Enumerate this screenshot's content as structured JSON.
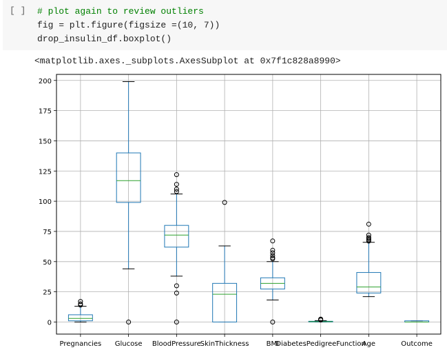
{
  "cell": {
    "run_label": "[ ]",
    "code_lines": [
      "# plot again to review outliers",
      "fig = plt.figure(figsize =(10, 7))",
      "drop_insulin_df.boxplot()"
    ],
    "output": "<matplotlib.axes._subplots.AxesSubplot at 0x7f1c828a8990>"
  },
  "colors": {
    "box": "#1f77b4",
    "median": "#2ca02c",
    "grid": "#b0b0b0",
    "cell_bg": "#f7f7f7",
    "comment": "#008000"
  },
  "chart_data": {
    "type": "boxplot",
    "title": "",
    "xlabel": "",
    "ylabel": "",
    "ylim": [
      -10,
      205
    ],
    "yticks": [
      0,
      25,
      50,
      75,
      100,
      125,
      150,
      175,
      200
    ],
    "grid": true,
    "categories": [
      "Pregnancies",
      "Glucose",
      "BloodPressure",
      "SkinThickness",
      "BMI",
      "DiabetesPedigreeFunction",
      "Age",
      "Outcome"
    ],
    "boxes": [
      {
        "name": "Pregnancies",
        "whisker_low": 0,
        "q1": 1,
        "median": 3,
        "q3": 6,
        "whisker_high": 13,
        "outliers": [
          14,
          15,
          17
        ]
      },
      {
        "name": "Glucose",
        "whisker_low": 44,
        "q1": 99,
        "median": 117,
        "q3": 140,
        "whisker_high": 199,
        "outliers": [
          0
        ]
      },
      {
        "name": "BloodPressure",
        "whisker_low": 38,
        "q1": 62,
        "median": 72,
        "q3": 80,
        "whisker_high": 106,
        "outliers": [
          0,
          24,
          30,
          108,
          110,
          114,
          122
        ]
      },
      {
        "name": "SkinThickness",
        "whisker_low": 0,
        "q1": 0,
        "median": 23,
        "q3": 32,
        "whisker_high": 63,
        "outliers": [
          99
        ]
      },
      {
        "name": "BMI",
        "whisker_low": 18.2,
        "q1": 27.3,
        "median": 32,
        "q3": 36.6,
        "whisker_high": 50,
        "outliers": [
          0,
          52.3,
          53.2,
          55,
          57.3,
          59.4,
          67.1
        ]
      },
      {
        "name": "DiabetesPedigreeFunction",
        "whisker_low": 0.08,
        "q1": 0.24,
        "median": 0.37,
        "q3": 0.63,
        "whisker_high": 1.19,
        "outliers": [
          1.6,
          2.1,
          2.42
        ]
      },
      {
        "name": "Age",
        "whisker_low": 21,
        "q1": 24,
        "median": 29,
        "q3": 41,
        "whisker_high": 66,
        "outliers": [
          67,
          68,
          69,
          70,
          72,
          81
        ]
      },
      {
        "name": "Outcome",
        "whisker_low": 0,
        "q1": 0,
        "median": 0,
        "q3": 1,
        "whisker_high": 1,
        "outliers": []
      }
    ]
  }
}
